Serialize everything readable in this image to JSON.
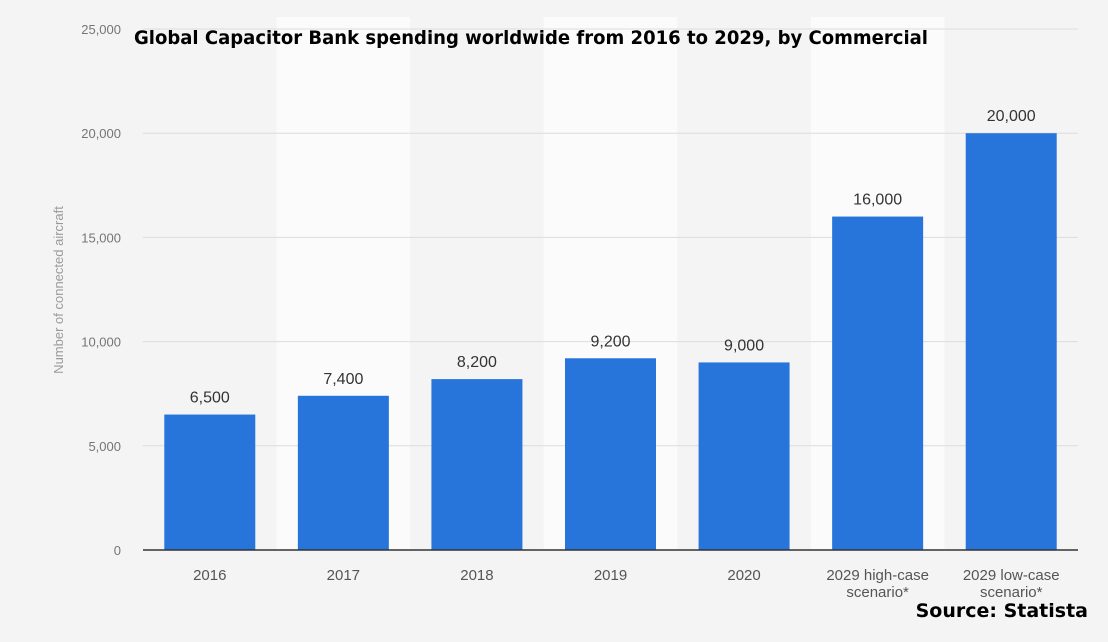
{
  "chart_data": {
    "type": "bar",
    "title": "Global Capacitor Bank spending worldwide from 2016 to 2029, by Commercial",
    "ylabel": "Number of connected aircraft",
    "xlabel": "",
    "ylim": [
      0,
      25000
    ],
    "yticks": [
      0,
      5000,
      10000,
      15000,
      20000,
      25000
    ],
    "ytick_labels": [
      "0",
      "5,000",
      "10,000",
      "15,000",
      "20,000",
      "25,000"
    ],
    "categories": [
      [
        "2016"
      ],
      [
        "2017"
      ],
      [
        "2018"
      ],
      [
        "2019"
      ],
      [
        "2020"
      ],
      [
        "2029 high-case",
        "scenario*"
      ],
      [
        "2029 low-case",
        "scenario*"
      ]
    ],
    "values": [
      6500,
      7400,
      8200,
      9200,
      9000,
      16000,
      20000
    ],
    "value_labels": [
      "6,500",
      "7,400",
      "8,200",
      "9,200",
      "9,000",
      "16,000",
      "20,000"
    ],
    "grid": true,
    "bar_color": "#2775db",
    "source": "Source: Statista"
  }
}
